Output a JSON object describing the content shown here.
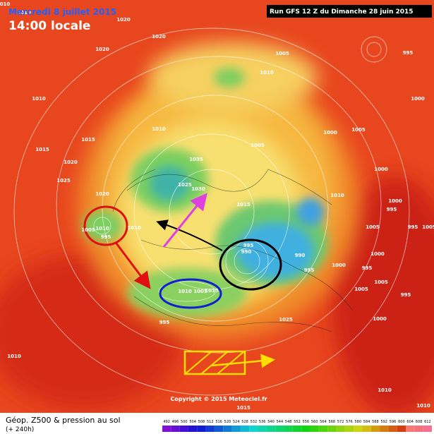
{
  "header": {
    "date": "Mercredi 8 juillet 2015",
    "time": "14:00 locale",
    "run": "Run GFS 12 Z du Dimanche 28 juin 2015"
  },
  "pressure_labels": [
    "010",
    "1010",
    "1020",
    "1020",
    "1020",
    "1005",
    "1010",
    "995",
    "1010",
    "1010",
    "1015",
    "1015",
    "1005",
    "1000",
    "1005",
    "1000",
    "1035",
    "1020",
    "1025",
    "1030",
    "1025",
    "1015",
    "1010",
    "1000",
    "1000",
    "995",
    "995",
    "1005",
    "1005",
    "1010",
    "995",
    "1010",
    "995",
    "990",
    "990",
    "995",
    "1005",
    "1000",
    "995",
    "1000",
    "1005",
    "1010",
    "1005",
    "1025",
    "1005",
    "1000",
    "995",
    "995",
    "1010",
    "1010",
    "1015",
    "1010",
    "1020",
    "1015"
  ],
  "footer": {
    "copyright": "Copyright © 2015 Meteociel.fr",
    "title": "Géop. Z500 & pression au sol",
    "lead": "(+ 240h)"
  },
  "legend": {
    "values": [
      492,
      496,
      500,
      504,
      508,
      512,
      516,
      520,
      524,
      528,
      532,
      536,
      540,
      544,
      548,
      552,
      556,
      560,
      564,
      568,
      572,
      576,
      580,
      584,
      588,
      592,
      596,
      600,
      604,
      608,
      612
    ]
  }
}
